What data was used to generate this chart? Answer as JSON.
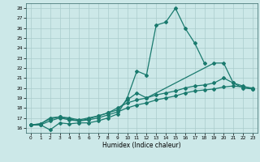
{
  "xlabel": "Humidex (Indice chaleur)",
  "xlim": [
    -0.5,
    23.5
  ],
  "ylim": [
    15.5,
    28.5
  ],
  "yticks": [
    16,
    17,
    18,
    19,
    20,
    21,
    22,
    23,
    24,
    25,
    26,
    27,
    28
  ],
  "xticks": [
    0,
    1,
    2,
    3,
    4,
    5,
    6,
    7,
    8,
    9,
    10,
    11,
    12,
    13,
    14,
    15,
    16,
    17,
    18,
    19,
    20,
    21,
    22,
    23
  ],
  "line_color": "#1a7a6e",
  "bg_color": "#cce8e8",
  "grid_color": "#aacccc",
  "lines": [
    {
      "x": [
        0,
        1,
        2,
        3,
        4,
        5,
        6,
        7,
        8,
        9,
        10,
        11,
        12,
        13,
        14,
        15,
        16,
        17,
        18
      ],
      "y": [
        16.3,
        16.3,
        15.8,
        16.5,
        16.4,
        16.5,
        16.5,
        16.7,
        17.0,
        17.4,
        19.0,
        21.7,
        21.3,
        26.3,
        26.6,
        28.0,
        26.0,
        24.5,
        22.5
      ]
    },
    {
      "x": [
        0,
        1,
        2,
        3,
        4,
        5,
        6,
        7,
        8,
        9,
        10,
        11,
        12,
        13,
        14,
        15,
        16,
        17,
        18,
        19,
        20,
        21,
        22,
        23
      ],
      "y": [
        16.3,
        16.3,
        16.7,
        17.0,
        16.8,
        16.7,
        16.8,
        17.0,
        17.3,
        17.6,
        18.0,
        18.3,
        18.5,
        18.8,
        19.0,
        19.2,
        19.5,
        19.7,
        19.8,
        19.9,
        20.1,
        20.2,
        20.1,
        20.0
      ]
    },
    {
      "x": [
        0,
        1,
        2,
        3,
        4,
        5,
        6,
        7,
        8,
        9,
        10,
        11,
        12,
        13,
        14,
        15,
        16,
        17,
        18,
        19,
        20,
        21,
        22,
        23
      ],
      "y": [
        16.3,
        16.4,
        16.9,
        17.1,
        17.0,
        16.8,
        17.0,
        17.2,
        17.5,
        18.0,
        18.5,
        18.8,
        19.0,
        19.3,
        19.5,
        19.7,
        20.0,
        20.2,
        20.3,
        20.5,
        21.0,
        20.5,
        20.2,
        19.9
      ]
    },
    {
      "x": [
        0,
        1,
        2,
        3,
        4,
        5,
        6,
        7,
        8,
        9,
        10,
        11,
        12,
        19,
        20,
        21,
        22,
        23
      ],
      "y": [
        16.3,
        16.4,
        17.0,
        17.1,
        16.9,
        16.7,
        16.9,
        17.2,
        17.5,
        17.8,
        18.8,
        19.5,
        19.0,
        22.5,
        22.5,
        20.5,
        20.0,
        19.9
      ]
    }
  ]
}
